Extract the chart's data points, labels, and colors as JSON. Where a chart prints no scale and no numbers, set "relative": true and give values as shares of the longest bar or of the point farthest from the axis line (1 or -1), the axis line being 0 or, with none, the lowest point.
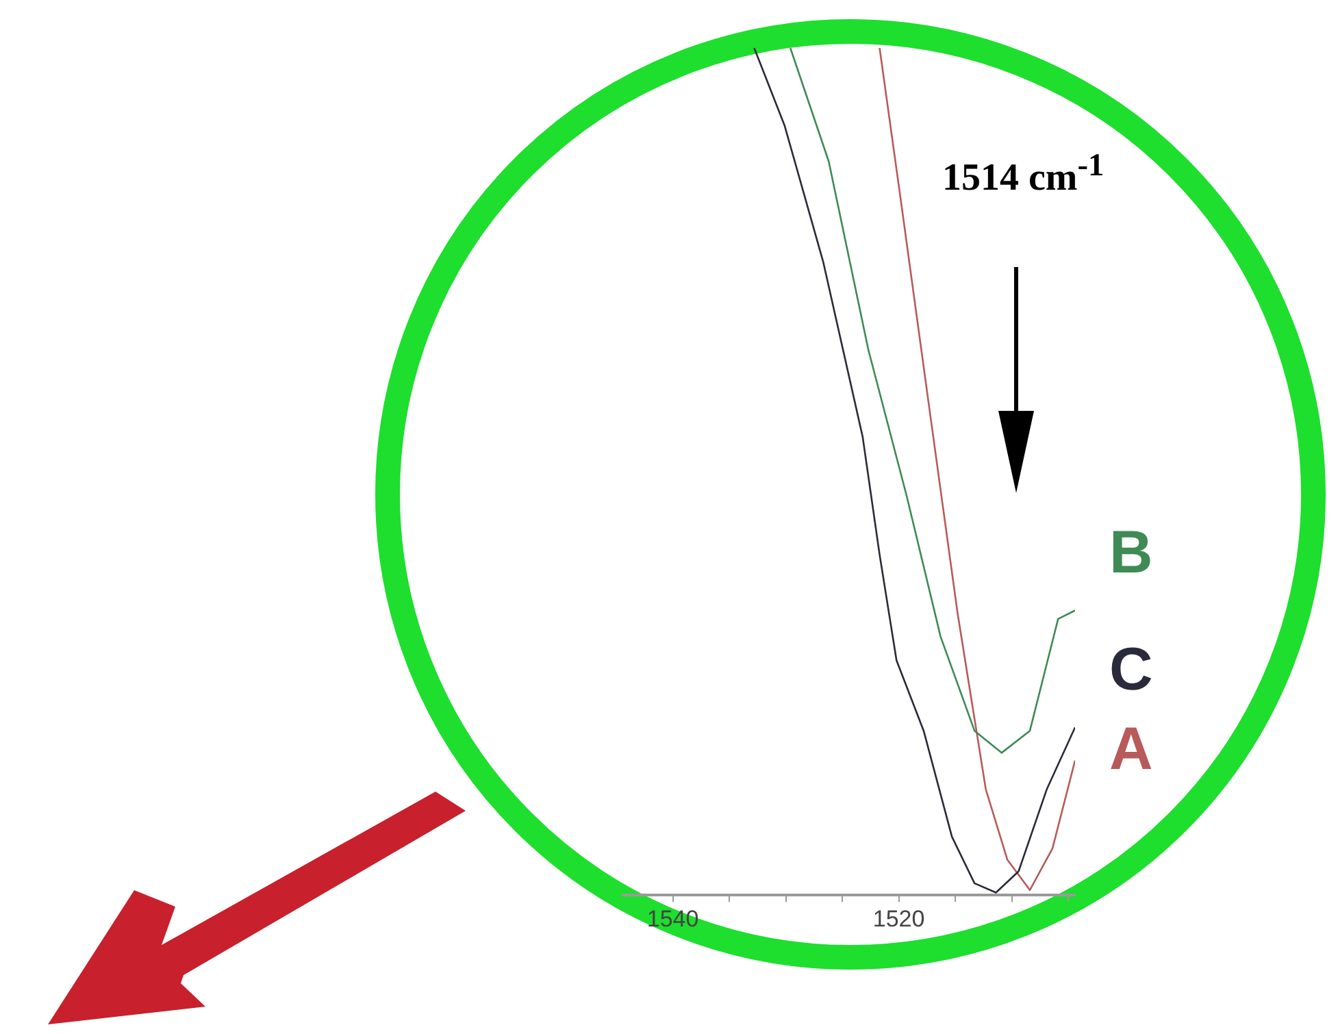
{
  "chart_data": {
    "type": "line",
    "relative": true,
    "marker": "none",
    "line_style": "solid",
    "grid": false,
    "legend": false,
    "xlim": [
      1544.4,
      1504.4
    ],
    "xticks": [
      1540,
      {
        "value": 1535,
        "label": null
      },
      {
        "value": 1530,
        "label": null
      },
      {
        "value": 1525,
        "label": null
      },
      1520,
      {
        "value": 1515,
        "label": null
      },
      {
        "value": 1510,
        "label": null
      },
      {
        "value": 1505,
        "label": null
      }
    ],
    "annotations": [
      "1514 cm$^{-1}$"
    ],
    "series": [
      {
        "name": "B",
        "color": "#3f8a55",
        "x": [
          1529.6,
          1526.2,
          1522.7,
          1519.3,
          1516.3,
          1513.3,
          1510.9,
          1508.4,
          1505.9,
          1504.4
        ],
        "values": [
          1.0,
          0.866,
          0.644,
          0.471,
          0.305,
          0.194,
          0.168,
          0.194,
          0.326,
          0.336
        ]
      },
      {
        "name": "C",
        "color": "#2a2a3a",
        "x": [
          1532.8,
          1530.1,
          1526.7,
          1523.2,
          1521.7,
          1520.2,
          1517.8,
          1515.3,
          1513.3,
          1511.4,
          1509.4,
          1506.9,
          1504.4
        ],
        "values": [
          1.0,
          0.908,
          0.748,
          0.541,
          0.402,
          0.277,
          0.194,
          0.069,
          0.014,
          0.003,
          0.028,
          0.125,
          0.198
        ]
      },
      {
        "name": "A",
        "color": "#b85a5a",
        "x": [
          1521.7,
          1519.8,
          1517.3,
          1514.8,
          1512.3,
          1510.4,
          1508.4,
          1506.4,
          1504.4
        ],
        "values": [
          1.0,
          0.818,
          0.575,
          0.333,
          0.125,
          0.042,
          0.006,
          0.055,
          0.159
        ]
      }
    ]
  }
}
